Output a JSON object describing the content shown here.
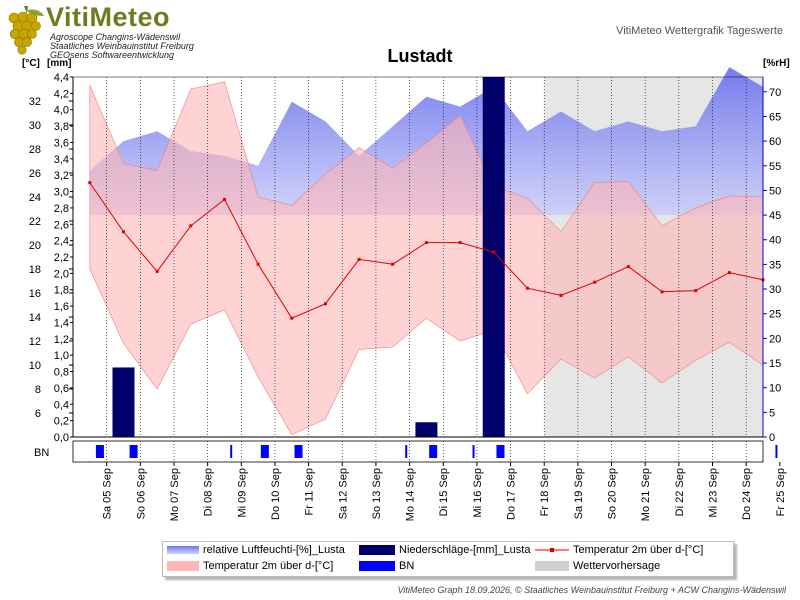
{
  "header": {
    "logo_title": "VitiMeteo",
    "logo_lines": [
      "Agroscope Changins-Wädenswil",
      "Staatliches Weinbauinstitut Freiburg",
      "GEOsens Softwareentwicklung"
    ],
    "subtitle": "VitiMeteo Wettergrafik Tageswerte"
  },
  "footer": "VitiMeteo Graph 18.09.2026, © Staatliches Weinbauinstitut Freiburg + ACW Changins-Wädenswil",
  "colors": {
    "humidity": "#7d83ee",
    "precip": "#00006b",
    "temp_line": "#e00000",
    "temp_band": "#ffb6b6",
    "bn": "#0000ff",
    "forecast": "#e6e6e6"
  },
  "chart_data": {
    "type": "line",
    "title": "Lustadt",
    "units": {
      "temp": "[°C]",
      "precip": "[mm]",
      "humidity": "[%rH]"
    },
    "bn_label": "BN",
    "x": [
      "Sa 05 Sep",
      "So 06 Sep",
      "Mo 07 Sep",
      "Di 08 Sep",
      "Mi 09 Sep",
      "Do 10 Sep",
      "Fr 11 Sep",
      "Sa 12 Sep",
      "So 13 Sep",
      "Mo 14 Sep",
      "Di 15 Sep",
      "Mi 16 Sep",
      "Do 17 Sep",
      "Fr 18 Sep",
      "Sa 19 Sep",
      "So 20 Sep",
      "Mo 21 Sep",
      "Di 22 Sep",
      "Mi 23 Sep",
      "Do 24 Sep",
      "Fr 25 Sep"
    ],
    "forecast_start_index": 14,
    "axes": {
      "temp": {
        "range": [
          4,
          34
        ],
        "ticks": [
          6,
          8,
          10,
          12,
          14,
          16,
          18,
          20,
          22,
          24,
          26,
          28,
          30,
          32
        ]
      },
      "precip": {
        "range": [
          0,
          4.4
        ],
        "ticks": [
          "0,0",
          "0,2",
          "0,4",
          "0,6",
          "0,8",
          "1,0",
          "1,2",
          "1,4",
          "1,6",
          "1,8",
          "2,0",
          "2,2",
          "2,4",
          "2,6",
          "2,8",
          "3,0",
          "3,2",
          "3,4",
          "3,6",
          "3,8",
          "4,0",
          "4,2",
          "4,4"
        ]
      },
      "humidity": {
        "range": [
          0,
          73
        ],
        "ticks": [
          0,
          5,
          10,
          15,
          20,
          25,
          30,
          35,
          40,
          45,
          50,
          55,
          60,
          65,
          70
        ]
      }
    },
    "series": [
      {
        "name": "relative Luftfeuchti-[%]_Lusta",
        "kind": "humidity_band",
        "max": [
          54,
          60,
          62,
          58,
          57,
          55,
          68,
          64,
          57,
          63,
          69,
          67,
          71,
          62,
          66,
          62,
          64,
          62,
          63,
          75,
          71
        ],
        "min": [
          45,
          45,
          45,
          45,
          45,
          45,
          45,
          45,
          45,
          45,
          45,
          45,
          45,
          45,
          45,
          45,
          45,
          45,
          45,
          45,
          45
        ]
      },
      {
        "name": "Niederschläge-[mm]_Lusta",
        "kind": "bar",
        "values": [
          0,
          0.85,
          0,
          0,
          0,
          0,
          0,
          0,
          0,
          0,
          0.18,
          0,
          4.45,
          0,
          0,
          0,
          0,
          0,
          0,
          0,
          0
        ]
      },
      {
        "name": "Temperatur 2m über d-[°C]",
        "kind": "line",
        "values": [
          25.2,
          21.1,
          17.8,
          21.6,
          23.8,
          18.4,
          13.9,
          15.1,
          18.8,
          18.4,
          20.2,
          20.2,
          19.4,
          16.4,
          15.8,
          16.9,
          18.2,
          16.1,
          16.2,
          17.7,
          17.1
        ]
      },
      {
        "name": "Temperatur 2m über d-[°C]",
        "kind": "band",
        "max": [
          33.3,
          26.8,
          26.2,
          33.0,
          33.6,
          24.0,
          23.3,
          25.9,
          28.1,
          26.4,
          28.5,
          30.8,
          24.9,
          23.9,
          21.1,
          25.2,
          25.3,
          21.6,
          23.1,
          24.1,
          24.0
        ],
        "min": [
          18.0,
          11.8,
          8.0,
          13.4,
          14.6,
          9.0,
          4.2,
          5.5,
          11.3,
          11.5,
          13.9,
          12.0,
          12.9,
          7.6,
          10.5,
          8.9,
          10.7,
          8.5,
          10.4,
          11.9,
          10.0
        ]
      },
      {
        "name": "BN",
        "kind": "marker",
        "positions": [
          0.8,
          1.8,
          4.7,
          5.7,
          6.7,
          9.9,
          10.7,
          11.9,
          12.7,
          20.9
        ]
      },
      {
        "name": "Wettervorhersage",
        "kind": "shade"
      }
    ]
  }
}
